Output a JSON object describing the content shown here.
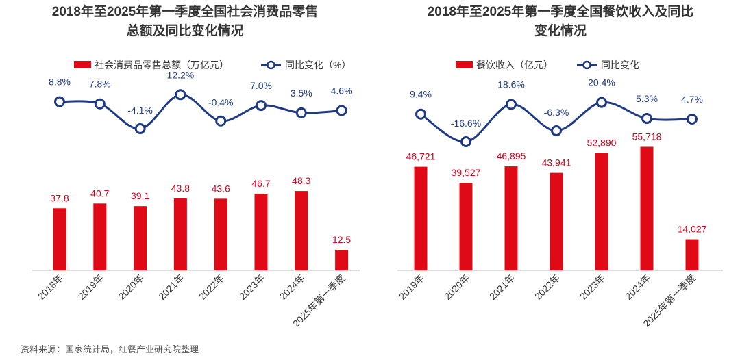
{
  "colors": {
    "bar": "#E00A17",
    "line": "#1E3A82",
    "title": "#333333",
    "label_red": "#D0021B",
    "label_blue": "#1E3A82",
    "axis": "#BBBBBB",
    "tick": "#333333"
  },
  "source": "资料来源：国家统计局，红餐产业研究院整理",
  "chart_data": [
    {
      "type": "bar",
      "title_line1": "2018年至2025年第一季度全国社会消费品零售",
      "title_line2": "总额及同比变化情况",
      "categories": [
        "2018年",
        "2019年",
        "2020年",
        "2021年",
        "2022年",
        "2023年",
        "2024年",
        "2025年第一季度"
      ],
      "series": [
        {
          "name": "社会消费品零售总额（万亿元）",
          "kind": "bar",
          "values": [
            37.8,
            40.7,
            39.1,
            43.8,
            43.6,
            46.7,
            48.3,
            12.5
          ],
          "labels": [
            "37.8",
            "40.7",
            "39.1",
            "43.8",
            "43.6",
            "46.7",
            "48.3",
            "12.5"
          ]
        },
        {
          "name": "同比变化（%）",
          "kind": "line",
          "values": [
            8.8,
            7.8,
            -4.1,
            12.2,
            -0.4,
            7.0,
            3.5,
            4.6
          ],
          "labels": [
            "8.8%",
            "7.8%",
            "-4.1%",
            "12.2%",
            "-0.4%",
            "7.0%",
            "3.5%",
            "4.6%"
          ]
        }
      ],
      "legend_position": "top",
      "grid": false
    },
    {
      "type": "bar",
      "title_line1": "2018年至2025年第一季度全国餐饮收入及同比",
      "title_line2": "变化情况",
      "categories": [
        "2019年",
        "2020年",
        "2021年",
        "2022年",
        "2023年",
        "2024年",
        "2025年第一季度"
      ],
      "series": [
        {
          "name": "餐饮收入（亿元）",
          "kind": "bar",
          "values": [
            46721,
            39527,
            46895,
            43941,
            52890,
            55718,
            14027
          ],
          "labels": [
            "46,721",
            "39,527",
            "46,895",
            "43,941",
            "52,890",
            "55,718",
            "14,027"
          ]
        },
        {
          "name": "同比变化",
          "kind": "line",
          "values": [
            9.4,
            -16.6,
            18.6,
            -6.3,
            20.4,
            5.3,
            4.7
          ],
          "labels": [
            "9.4%",
            "-16.6%",
            "18.6%",
            "-6.3%",
            "20.4%",
            "5.3%",
            "4.7%"
          ]
        }
      ],
      "legend_position": "top",
      "grid": false
    }
  ]
}
